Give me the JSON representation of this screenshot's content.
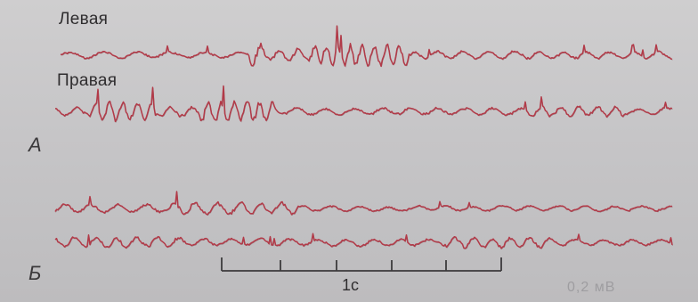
{
  "labels": {
    "left_channel": "Левая",
    "right_channel": "Правая",
    "panel_a": "А",
    "panel_b": "Б",
    "time_scale": "1с",
    "amplitude_scale": "0,2 мВ"
  },
  "colors": {
    "trace": "#b23a48",
    "background": "#c7c6c8",
    "text": "#2f2d2f"
  }
}
